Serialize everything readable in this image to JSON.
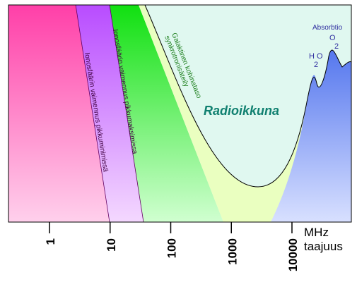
{
  "window_label": "Radioikkuna",
  "region_labels": [
    "Ionosfäärin vaimennus pikkuminimissä",
    "Ionosfäärin vaimennus pikkumaksimissa"
  ],
  "galactic_label": [
    "Galaktinen kohinataso",
    "synkrotronisäteily"
  ],
  "absorption": {
    "title": "Absorbtio",
    "o2": [
      "O",
      "2"
    ],
    "h2o": [
      "H O",
      "2"
    ]
  },
  "axis": {
    "unit": "MHz",
    "label": "taajuus",
    "ticks": [
      1,
      10,
      100,
      1000,
      10000
    ]
  }
}
